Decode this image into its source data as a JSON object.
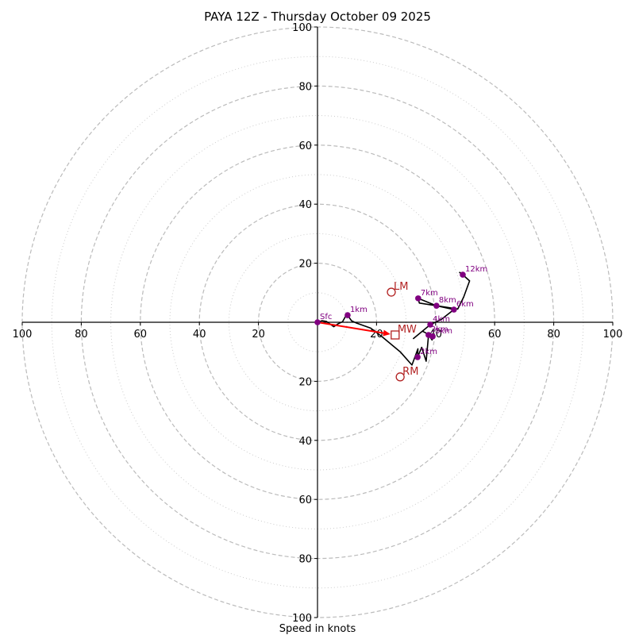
{
  "chart_data": {
    "type": "hodograph",
    "title": "PAYA 12Z - Thursday October 09 2025",
    "xlabel": "Speed in knots",
    "ylabel": "",
    "xlim": [
      -100,
      100
    ],
    "ylim": [
      -100,
      100
    ],
    "x_ticks": [
      100,
      80,
      60,
      40,
      20,
      20,
      40,
      60,
      80,
      100
    ],
    "x_tick_values": [
      -100,
      -80,
      -60,
      -40,
      -20,
      20,
      40,
      60,
      80,
      100
    ],
    "y_ticks": [
      100,
      80,
      60,
      40,
      20,
      20,
      40,
      60,
      80,
      100
    ],
    "y_tick_values": [
      100,
      80,
      60,
      40,
      20,
      -20,
      -40,
      -60,
      -80,
      -100
    ],
    "rings_major": [
      20,
      40,
      60,
      80,
      100
    ],
    "rings_minor": [
      10,
      30,
      50,
      70,
      90
    ],
    "grid": true,
    "colors": {
      "trace": "#000000",
      "height_marker": "#800080",
      "storm_motion": "#b22222",
      "mean_wind_arrow": "#ff0000",
      "ring": "#bbbbbb"
    },
    "trace": [
      [
        0,
        0
      ],
      [
        1.5,
        0.5
      ],
      [
        3,
        0.3
      ],
      [
        5.5,
        -1.5
      ],
      [
        7,
        -0.5
      ],
      [
        8.5,
        0.2
      ],
      [
        9.5,
        2
      ],
      [
        10.2,
        2.4
      ],
      [
        11.5,
        0.5
      ],
      [
        13,
        -0.2
      ],
      [
        18,
        -2
      ],
      [
        22,
        -5
      ],
      [
        28,
        -10
      ],
      [
        32,
        -14.5
      ],
      [
        34,
        -9
      ],
      [
        33.9,
        -11.8
      ],
      [
        35.3,
        -8.5
      ],
      [
        36.8,
        -13.2
      ],
      [
        37.6,
        -4.3
      ],
      [
        38.8,
        -6
      ],
      [
        39.5,
        -4
      ],
      [
        39.0,
        -4.8
      ],
      [
        35.5,
        -3
      ],
      [
        32.5,
        -5.5
      ],
      [
        38.2,
        -0.8
      ],
      [
        42,
        1
      ],
      [
        46.2,
        4.3
      ],
      [
        40.3,
        5.6
      ],
      [
        34.1,
        8.1
      ],
      [
        34.5,
        6.5
      ],
      [
        47.5,
        4.5
      ],
      [
        49.5,
        8.5
      ],
      [
        51.5,
        14
      ],
      [
        49.2,
        16.1
      ],
      [
        48,
        17
      ]
    ],
    "height_markers": [
      {
        "label": "Sfc",
        "u": 0.0,
        "v": 0.0
      },
      {
        "label": "1km",
        "u": 10.2,
        "v": 2.4
      },
      {
        "label": "2km",
        "u": 33.9,
        "v": -11.8
      },
      {
        "label": "3km",
        "u": 37.6,
        "v": -4.3
      },
      {
        "label": "4km",
        "u": 38.2,
        "v": -0.8
      },
      {
        "label": "5km",
        "u": 39.0,
        "v": -4.8
      },
      {
        "label": "6km",
        "u": 46.2,
        "v": 4.3
      },
      {
        "label": "7km",
        "u": 34.1,
        "v": 8.1
      },
      {
        "label": "8km",
        "u": 40.3,
        "v": 5.6
      },
      {
        "label": "12km",
        "u": 49.2,
        "v": 16.1
      }
    ],
    "storm_motion": [
      {
        "label": "LM",
        "u": 25.0,
        "v": 10.2,
        "marker": "circle"
      },
      {
        "label": "RM",
        "u": 28.0,
        "v": -18.5,
        "marker": "circle"
      },
      {
        "label": "MW",
        "u": 26.3,
        "v": -4.3,
        "marker": "square"
      }
    ],
    "mean_wind_arrow": {
      "from": [
        0,
        0
      ],
      "to": [
        26.3,
        -4.3
      ]
    }
  }
}
